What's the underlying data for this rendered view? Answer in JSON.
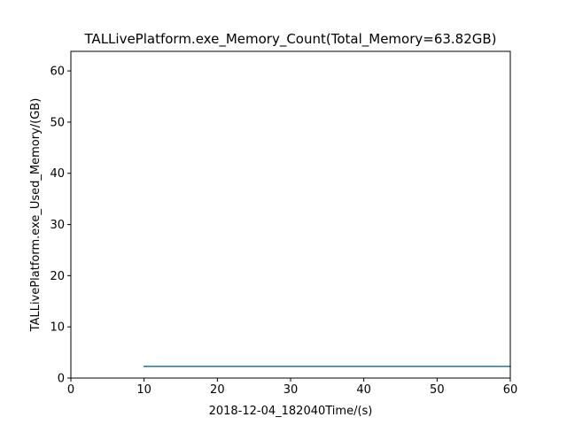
{
  "chart_data": {
    "type": "line",
    "title": "TALLivePlatform.exe_Memory_Count(Total_Memory=63.82GB)",
    "xlabel": "2018-12-04_182040Time/(s)",
    "ylabel": "TALLivePlatform.exe_Used_Memory/(GB)",
    "xlim": [
      0,
      60
    ],
    "ylim": [
      0,
      63.82
    ],
    "xticks": [
      0,
      10,
      20,
      30,
      40,
      50,
      60
    ],
    "yticks": [
      0,
      10,
      20,
      30,
      40,
      50,
      60
    ],
    "grid": false,
    "series": [
      {
        "color": "#1f77b4",
        "x": [
          10,
          20,
          30,
          40,
          50,
          60
        ],
        "y": [
          2.3,
          2.3,
          2.3,
          2.3,
          2.3,
          2.3
        ]
      }
    ]
  }
}
